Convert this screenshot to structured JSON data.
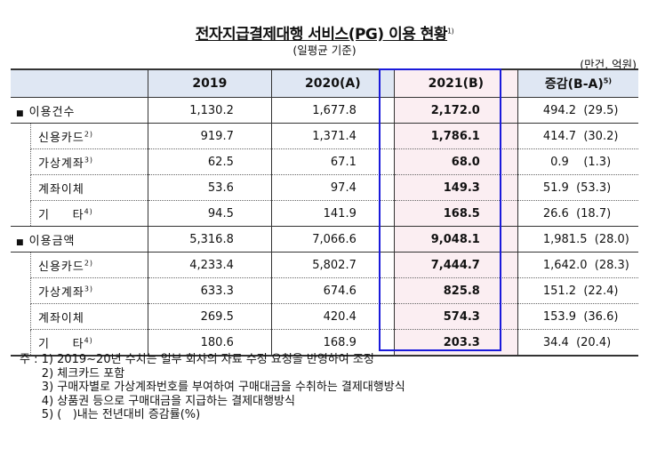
{
  "title": "전자지급결제대행 서비스(PG) 이용 현황",
  "title_note": "1)",
  "subtitle": "(일평균 기준)",
  "unit": "(만건, 억원)",
  "headers": {
    "c1": "2019",
    "c2": "2020(A)",
    "c3": "2021(B)",
    "c4": "증감(B-A)",
    "c4_note": "5)"
  },
  "groups": [
    {
      "label": "이용건수",
      "values": [
        "1,130.2",
        "1,677.8",
        "2,172.0",
        "494.2  (29.5)"
      ],
      "rows": [
        {
          "label": "신용카드",
          "note": "2)",
          "values": [
            "919.7",
            "1,371.4",
            "1,786.1",
            "414.7  (30.2)"
          ]
        },
        {
          "label": "가상계좌",
          "note": "3)",
          "values": [
            "62.5",
            "67.1",
            "68.0",
            "  0.9    (1.3)"
          ]
        },
        {
          "label": "계좌이체",
          "note": "",
          "values": [
            "53.6",
            "97.4",
            "149.3",
            "51.9  (53.3)"
          ]
        },
        {
          "label": "기     타",
          "note": "4)",
          "values": [
            "94.5",
            "141.9",
            "168.5",
            "26.6  (18.7)"
          ]
        }
      ]
    },
    {
      "label": "이용금액",
      "values": [
        "5,316.8",
        "7,066.6",
        "9,048.1",
        "1,981.5  (28.0)"
      ],
      "rows": [
        {
          "label": "신용카드",
          "note": "2)",
          "values": [
            "4,233.4",
            "5,802.7",
            "7,444.7",
            "1,642.0  (28.3)"
          ]
        },
        {
          "label": "가상계좌",
          "note": "3)",
          "values": [
            "633.3",
            "674.6",
            "825.8",
            "151.2  (22.4)"
          ]
        },
        {
          "label": "계좌이체",
          "note": "",
          "values": [
            "269.5",
            "420.4",
            "574.3",
            "153.9  (36.6)"
          ]
        },
        {
          "label": "기     타",
          "note": "4)",
          "values": [
            "180.6",
            "168.9",
            "203.3",
            "34.4  (20.4)"
          ]
        }
      ]
    }
  ],
  "notes": [
    "주 : 1) 2019~20년 수치는 일부 회사의 자료 수정 요청을 반영하여 조정",
    "      2) 체크카드 포함",
    "      3) 구매자별로 가상계좌번호를 부여하여 구매대금을 수취하는 결제대행방식",
    "      4) 상품권 등으로 구매대금을 지급하는 결제대행방식",
    "      5) (   )내는 전년대비 증감률(%)"
  ],
  "colors": {
    "header_bg": "#dfe7f3",
    "highlight_bg": "#fbeef2",
    "highlight_border": "#1a1adb"
  }
}
